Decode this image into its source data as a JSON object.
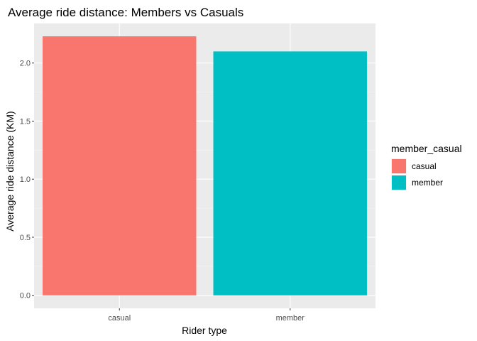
{
  "chart_data": {
    "type": "bar",
    "title": "Average ride distance: Members vs Casuals",
    "xlabel": "Rider type",
    "ylabel": "Average ride distance (KM)",
    "categories": [
      "casual",
      "member"
    ],
    "values": [
      2.23,
      2.1
    ],
    "colors": [
      "#F8766D",
      "#00BFC4"
    ],
    "ylim": [
      -0.112,
      2.341
    ],
    "yticks": [
      0.0,
      0.5,
      1.0,
      1.5,
      2.0
    ],
    "ytick_labels": [
      "0.0",
      "0.5",
      "1.0",
      "1.5",
      "2.0"
    ],
    "grid": true,
    "legend": {
      "title": "member_casual",
      "placement": "right",
      "entries": [
        "casual",
        "member"
      ]
    }
  }
}
